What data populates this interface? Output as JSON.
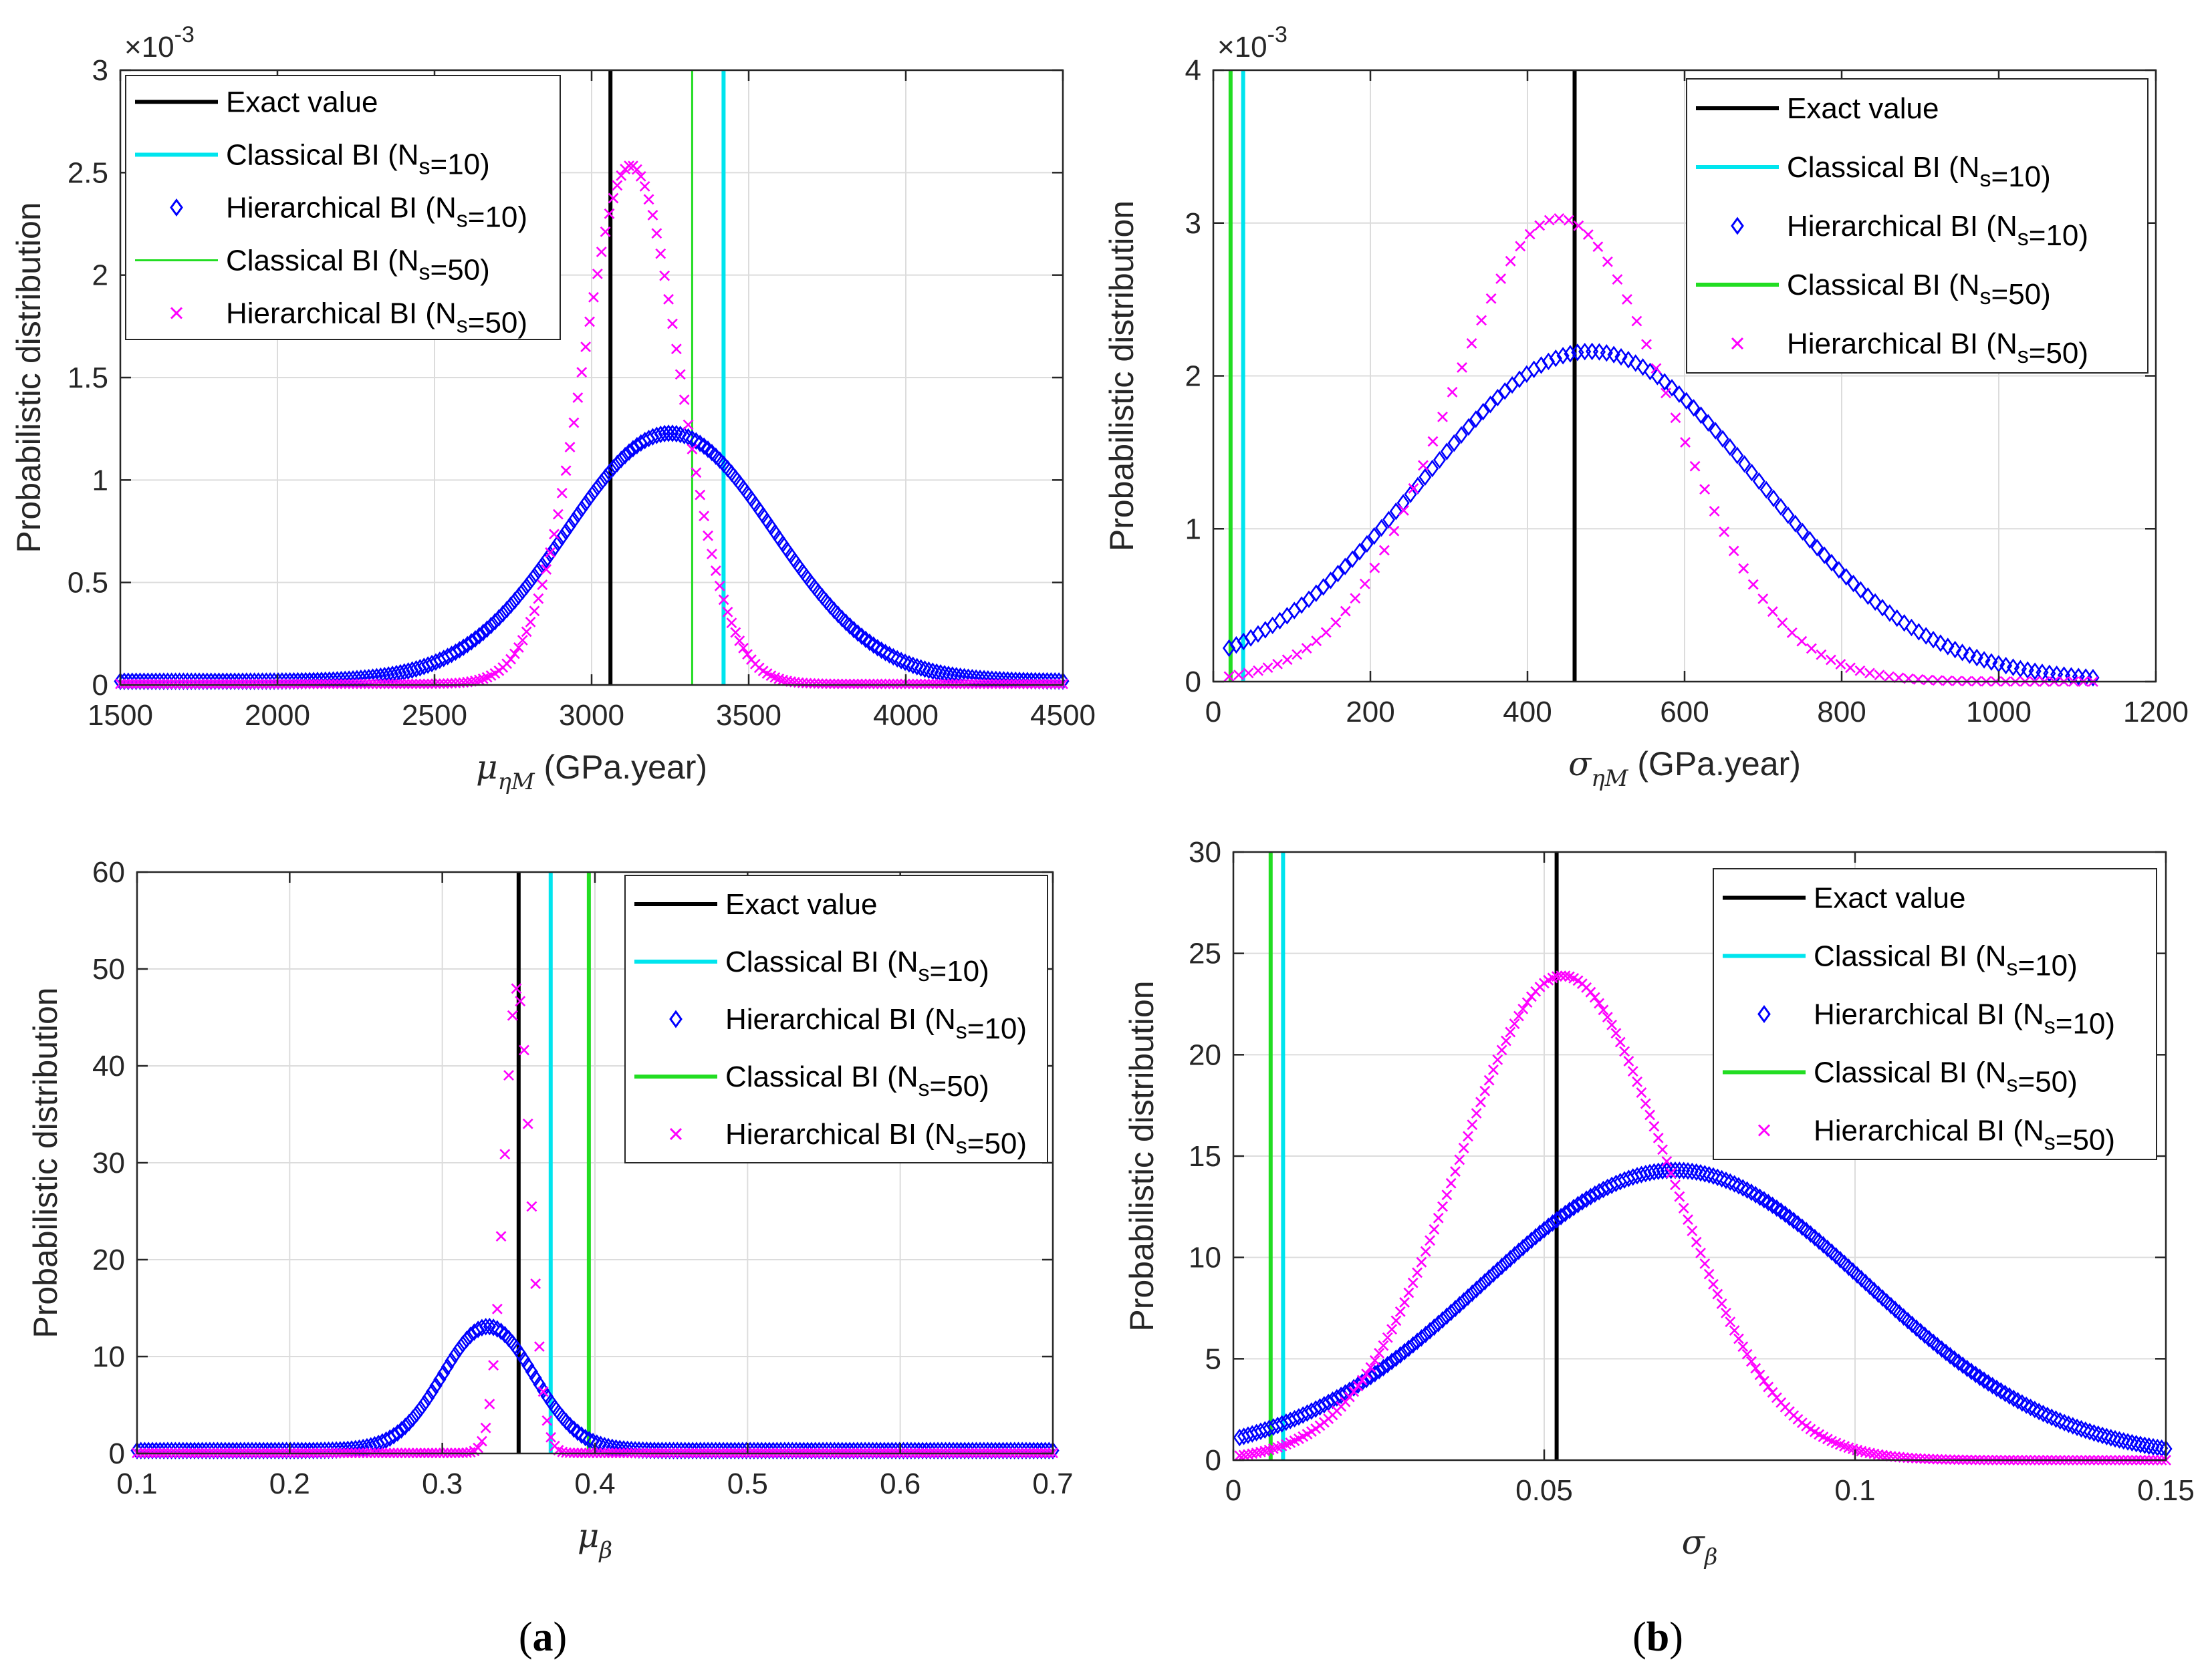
{
  "panel_labels": {
    "a": {
      "open": "(",
      "letter": "a",
      "close": ")"
    },
    "b": {
      "open": "(",
      "letter": "b",
      "close": ")"
    }
  },
  "legend_common": {
    "exact": "Exact value",
    "classical_prefix": "Classical BI (N",
    "hierarchical_prefix": "Hierarchical BI (N",
    "sub": "s",
    "eq10": "=10)",
    "eq50": "=50)"
  },
  "colors": {
    "exact": "#000000",
    "classical10": "#00e5ee",
    "classical50": "#22dd22",
    "hier10": "#0000ff",
    "hier50": "#ff00ff",
    "grid": "#dcdcdc",
    "axis": "#262626"
  },
  "chart_data": [
    {
      "id": "mu_eta",
      "type": "line",
      "xlabel": {
        "sym": "μ",
        "sub": "ηM",
        "unit": " (GPa.year)"
      },
      "ylabel": "Probabilistic distribution",
      "xlim": [
        1500,
        4500
      ],
      "ylim": [
        0,
        3
      ],
      "xticks": [
        "1500",
        "2000",
        "2500",
        "3000",
        "3500",
        "4000",
        "4500"
      ],
      "yticks": [
        "0",
        "0.5",
        "1",
        "1.5",
        "2",
        "2.5",
        "3"
      ],
      "y_exponent": {
        "times": "×10",
        "power": "-3"
      },
      "grid": true,
      "legend_position": "top-left",
      "exact_value": 3060,
      "classical_10": 3420,
      "classical_50": 3320,
      "hier_10": {
        "mean": 3250,
        "sd": 330,
        "peak": 1.21,
        "floor": 0.018,
        "range": [
          1500,
          4500
        ],
        "count": 240
      },
      "hier_50": {
        "mean": 3125,
        "sd": 155,
        "peak": 2.53,
        "floor": 0.005,
        "range": [
          1500,
          4500
        ],
        "count": 240
      }
    },
    {
      "id": "sigma_eta",
      "type": "line",
      "xlabel": {
        "sym": "σ",
        "sub": "ηM",
        "unit": " (GPa.year)"
      },
      "ylabel": "Probabilistic distribution",
      "xlim": [
        0,
        1200
      ],
      "ylim": [
        0,
        4
      ],
      "xticks": [
        "0",
        "200",
        "400",
        "600",
        "800",
        "1000",
        "1200"
      ],
      "yticks": [
        "0",
        "1",
        "2",
        "3",
        "4"
      ],
      "y_exponent": {
        "times": "×10",
        "power": "-3"
      },
      "grid": true,
      "legend_position": "top-right",
      "exact_value": 460,
      "classical_10": 38,
      "classical_50": 22,
      "hier_10": {
        "mean": 480,
        "sd": 215,
        "peak": 2.16,
        "floor": 0.0,
        "range": [
          20,
          1120
        ],
        "count": 120
      },
      "hier_50": {
        "mean": 440,
        "sd": 140,
        "peak": 3.03,
        "floor": 0.0,
        "range": [
          20,
          1120
        ],
        "count": 90
      }
    },
    {
      "id": "mu_beta",
      "type": "line",
      "xlabel": {
        "sym": "μ",
        "sub": "β",
        "unit": ""
      },
      "ylabel": "Probabilistic distribution",
      "xlim": [
        0.1,
        0.7
      ],
      "ylim": [
        0,
        60
      ],
      "xticks": [
        "0.1",
        "0.2",
        "0.3",
        "0.4",
        "0.5",
        "0.6",
        "0.7"
      ],
      "yticks": [
        "0",
        "10",
        "20",
        "30",
        "40",
        "50",
        "60"
      ],
      "grid": true,
      "legend_position": "top-right",
      "exact_value": 0.35,
      "classical_10": 0.371,
      "classical_50": 0.396,
      "hier_10": {
        "mean": 0.33,
        "sd": 0.03,
        "peak": 12.8,
        "floor": 0.3,
        "range": [
          0.1,
          0.7
        ],
        "count": 240
      },
      "hier_50": {
        "mean": 0.349,
        "sd": 0.0085,
        "peak": 48.0,
        "floor": 0.05,
        "range": [
          0.1,
          0.7
        ],
        "count": 240
      }
    },
    {
      "id": "sigma_beta",
      "type": "line",
      "xlabel": {
        "sym": "σ",
        "sub": "β",
        "unit": ""
      },
      "ylabel": "Probabilistic distribution",
      "xlim": [
        0,
        0.15
      ],
      "ylim": [
        0,
        30
      ],
      "xticks": [
        "0",
        "0.05",
        "0.1",
        "0.15"
      ],
      "yticks": [
        "0",
        "5",
        "10",
        "15",
        "20",
        "25",
        "30"
      ],
      "grid": true,
      "legend_position": "top-right",
      "exact_value": 0.052,
      "classical_10": 0.008,
      "classical_50": 0.006,
      "hier_10": {
        "mean": 0.071,
        "sd": 0.031,
        "peak": 14.3,
        "floor": 0.0,
        "range": [
          0.001,
          0.15
        ],
        "count": 220
      },
      "hier_50": {
        "mean": 0.053,
        "sd": 0.017,
        "peak": 23.9,
        "floor": 0.0,
        "range": [
          0.001,
          0.15
        ],
        "count": 220
      }
    }
  ]
}
